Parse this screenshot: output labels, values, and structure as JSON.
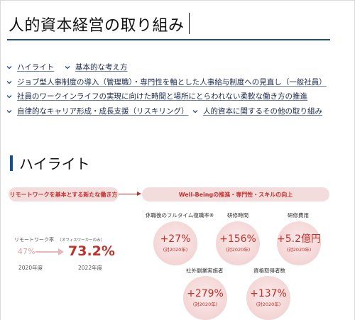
{
  "page": {
    "title": "人的資本経営の取り組み"
  },
  "nav": {
    "items": [
      {
        "label": "ハイライト"
      },
      {
        "label": "基本的な考え方"
      },
      {
        "label": "ジョブ型人事制度の導入（管理職）・専門性を軸とした人事給与制度への見直し（一般社員）"
      },
      {
        "label": "社員のワークインライフの実現に向けた時間と場所にとらわれない柔軟な働き方の推進"
      },
      {
        "label": "自律的なキャリア形成・成長支援（リスキリング）"
      },
      {
        "label": "人的資本に関するその他の取り組み"
      }
    ]
  },
  "section": {
    "title": "ハイライト"
  },
  "highlight": {
    "left_band": "リモートワークを基本とする新たな働き方",
    "right_band": "Well-Beingの推進・専門性・スキルの向上",
    "remote_label": "リモートワーク率",
    "remote_note": "（オフィスワーカーのみ）",
    "remote_old_value": "47%",
    "remote_new_value": "73.2%",
    "remote_old_year": "2020年度",
    "remote_new_year": "2022年度"
  },
  "metrics": [
    {
      "label": "休職後のフルタイム復職率※",
      "value": "+27%",
      "sub": "(対2020年)"
    },
    {
      "label": "研修時間",
      "value": "+156%",
      "sub": "(対2020年)"
    },
    {
      "label": "研修費用",
      "value": "+5.2億円",
      "sub": "(対2020年)"
    },
    {
      "label": "社外副業実施者",
      "value": "+279%",
      "sub": "(対2020年)"
    },
    {
      "label": "資格取得者数",
      "value": "+137%",
      "sub": "(対2020年)"
    }
  ],
  "colors": {
    "accent_blue": "#1b4f8a",
    "accent_red": "#c0312b",
    "band_bg": "#f3dcdc"
  },
  "icons": {
    "nav_item": "chevron-down-icon"
  }
}
